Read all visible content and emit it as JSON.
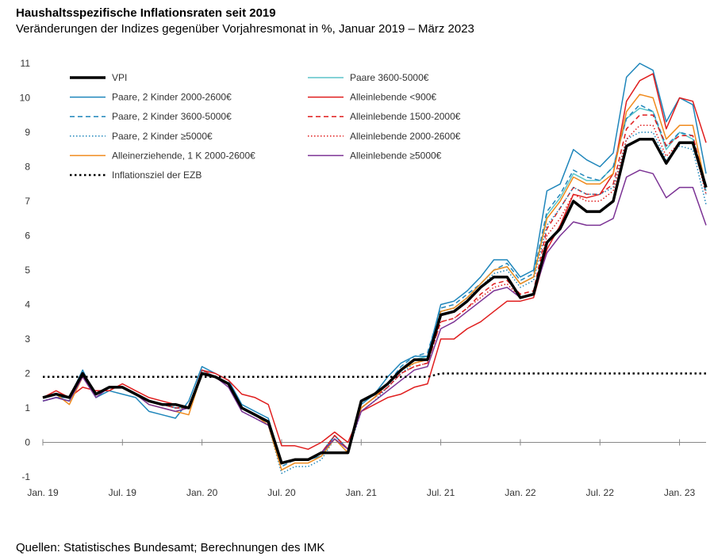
{
  "header": {
    "title": "Haushaltsspezifische Inflationsraten seit 2019",
    "subtitle": "Veränderungen der Indizes gegenüber Vorjahresmonat in %, Januar 2019 – März 2023"
  },
  "footer": {
    "source": "Quellen: Statistisches Bundesamt; Berechnungen des IMK"
  },
  "chart_data": {
    "type": "line",
    "title": "Haushaltsspezifische Inflationsraten seit 2019",
    "subtitle": "Veränderungen der Indizes gegenüber Vorjahresmonat in %, Januar 2019 – März 2023",
    "xlabel": "",
    "ylabel": "",
    "ylim": [
      -1,
      11
    ],
    "yticks": [
      -1,
      0,
      1,
      2,
      3,
      4,
      5,
      6,
      7,
      8,
      9,
      10,
      11
    ],
    "x_tick_labels": [
      {
        "month_index": 0,
        "label": "Jan. 19"
      },
      {
        "month_index": 6,
        "label": "Jul. 19"
      },
      {
        "month_index": 12,
        "label": "Jan. 20"
      },
      {
        "month_index": 18,
        "label": "Jul. 20"
      },
      {
        "month_index": 24,
        "label": "Jan. 21"
      },
      {
        "month_index": 30,
        "label": "Jul. 21"
      },
      {
        "month_index": 36,
        "label": "Jan. 22"
      },
      {
        "month_index": 42,
        "label": "Jul. 22"
      },
      {
        "month_index": 48,
        "label": "Jan. 23"
      }
    ],
    "x": [
      "2019-01",
      "2019-02",
      "2019-03",
      "2019-04",
      "2019-05",
      "2019-06",
      "2019-07",
      "2019-08",
      "2019-09",
      "2019-10",
      "2019-11",
      "2019-12",
      "2020-01",
      "2020-02",
      "2020-03",
      "2020-04",
      "2020-05",
      "2020-06",
      "2020-07",
      "2020-08",
      "2020-09",
      "2020-10",
      "2020-11",
      "2020-12",
      "2021-01",
      "2021-02",
      "2021-03",
      "2021-04",
      "2021-05",
      "2021-06",
      "2021-07",
      "2021-08",
      "2021-09",
      "2021-10",
      "2021-11",
      "2021-12",
      "2022-01",
      "2022-02",
      "2022-03",
      "2022-04",
      "2022-05",
      "2022-06",
      "2022-07",
      "2022-08",
      "2022-09",
      "2022-10",
      "2022-11",
      "2022-12",
      "2023-01",
      "2023-02",
      "2023-03"
    ],
    "grid": false,
    "legend_position": "top-left",
    "series": [
      {
        "name": "VPI",
        "color": "#000000",
        "dash": "solid",
        "width": 3.5,
        "values": [
          1.3,
          1.4,
          1.3,
          2.0,
          1.4,
          1.6,
          1.6,
          1.4,
          1.2,
          1.1,
          1.1,
          1.0,
          2.0,
          1.9,
          1.7,
          1.0,
          0.8,
          0.6,
          -0.6,
          -0.5,
          -0.5,
          -0.3,
          -0.3,
          -0.3,
          1.2,
          1.4,
          1.7,
          2.1,
          2.4,
          2.4,
          3.7,
          3.8,
          4.1,
          4.5,
          4.8,
          4.8,
          4.2,
          4.3,
          5.8,
          6.2,
          7.0,
          6.7,
          6.7,
          7.0,
          8.6,
          8.8,
          8.8,
          8.1,
          8.7,
          8.7,
          7.4
        ]
      },
      {
        "name": "Paare 3600-5000€",
        "color": "#5bc4c9",
        "dash": "solid",
        "width": 1.5,
        "values": [
          1.2,
          1.3,
          1.2,
          2.0,
          1.4,
          1.6,
          1.6,
          1.4,
          1.2,
          1.1,
          1.0,
          1.0,
          2.1,
          1.9,
          1.7,
          1.0,
          0.8,
          0.6,
          -0.6,
          -0.5,
          -0.5,
          -0.3,
          0.2,
          -0.2,
          1.0,
          1.3,
          1.7,
          2.1,
          2.4,
          2.5,
          3.8,
          3.9,
          4.2,
          4.6,
          5.0,
          5.1,
          4.6,
          4.8,
          6.6,
          7.1,
          7.8,
          7.6,
          7.6,
          8.0,
          9.4,
          9.7,
          9.6,
          8.5,
          9.0,
          8.8,
          7.3
        ]
      },
      {
        "name": "Paare, 2 Kinder 2000-2600€",
        "color": "#1f86bb",
        "dash": "solid",
        "width": 1.5,
        "values": [
          1.2,
          1.3,
          1.3,
          2.1,
          1.3,
          1.5,
          1.4,
          1.3,
          0.9,
          0.8,
          0.7,
          1.2,
          2.2,
          2.0,
          1.8,
          1.1,
          0.9,
          0.7,
          -0.6,
          -0.5,
          -0.5,
          -0.4,
          0.2,
          -0.2,
          1.1,
          1.4,
          1.9,
          2.3,
          2.5,
          2.5,
          4.0,
          4.1,
          4.4,
          4.8,
          5.3,
          5.3,
          4.8,
          5.0,
          7.3,
          7.5,
          8.5,
          8.2,
          8.0,
          8.4,
          10.6,
          11.0,
          10.8,
          9.3,
          10.0,
          9.8,
          7.8
        ]
      },
      {
        "name": "Alleinlebende <900€",
        "color": "#e01e1e",
        "dash": "solid",
        "width": 1.5,
        "values": [
          1.3,
          1.5,
          1.3,
          1.6,
          1.5,
          1.5,
          1.7,
          1.5,
          1.3,
          1.2,
          1.1,
          1.0,
          2.1,
          2.0,
          1.8,
          1.4,
          1.3,
          1.1,
          -0.1,
          -0.1,
          -0.2,
          0.0,
          0.3,
          0.0,
          0.9,
          1.1,
          1.3,
          1.4,
          1.6,
          1.7,
          3.0,
          3.0,
          3.3,
          3.5,
          3.8,
          4.1,
          4.1,
          4.2,
          5.6,
          6.3,
          7.2,
          7.1,
          7.2,
          7.8,
          9.9,
          10.5,
          10.7,
          9.1,
          10.0,
          9.9,
          8.7
        ]
      },
      {
        "name": "Paare, 2 Kinder 3600-5000€",
        "color": "#1f86bb",
        "dash": "dashed",
        "width": 1.5,
        "values": [
          1.2,
          1.3,
          1.2,
          2.0,
          1.4,
          1.6,
          1.6,
          1.4,
          1.2,
          1.1,
          1.0,
          1.0,
          2.1,
          1.9,
          1.7,
          1.0,
          0.8,
          0.6,
          -0.7,
          -0.5,
          -0.5,
          -0.3,
          0.2,
          -0.2,
          1.0,
          1.3,
          1.7,
          2.2,
          2.5,
          2.6,
          3.9,
          4.0,
          4.3,
          4.6,
          5.0,
          5.2,
          4.7,
          4.9,
          6.7,
          7.2,
          7.9,
          7.7,
          7.6,
          8.0,
          9.4,
          9.8,
          9.6,
          8.6,
          9.0,
          8.9,
          7.2
        ]
      },
      {
        "name": "Alleinlebende 1500-2000€",
        "color": "#e01e1e",
        "dash": "dashed",
        "width": 1.5,
        "values": [
          1.3,
          1.4,
          1.3,
          1.9,
          1.4,
          1.6,
          1.6,
          1.4,
          1.2,
          1.1,
          1.0,
          1.0,
          2.1,
          1.9,
          1.7,
          1.0,
          0.8,
          0.6,
          -0.6,
          -0.5,
          -0.5,
          -0.3,
          0.2,
          -0.2,
          1.0,
          1.3,
          1.6,
          2.0,
          2.2,
          2.3,
          3.5,
          3.6,
          3.9,
          4.3,
          4.6,
          4.7,
          4.3,
          4.4,
          6.2,
          6.8,
          7.4,
          7.2,
          7.2,
          7.5,
          9.1,
          9.5,
          9.5,
          8.6,
          8.9,
          8.9,
          7.4
        ]
      },
      {
        "name": "Paare, 2 Kinder ≥5000€",
        "color": "#1f86bb",
        "dash": "dotted",
        "width": 1.5,
        "values": [
          1.2,
          1.3,
          1.2,
          2.0,
          1.4,
          1.6,
          1.6,
          1.4,
          1.2,
          1.1,
          1.0,
          1.0,
          2.1,
          1.9,
          1.7,
          0.9,
          0.7,
          0.5,
          -0.9,
          -0.7,
          -0.7,
          -0.5,
          0.1,
          -0.3,
          0.9,
          1.2,
          1.6,
          2.0,
          2.3,
          2.4,
          3.8,
          3.9,
          4.2,
          4.5,
          4.9,
          5.0,
          4.5,
          4.7,
          6.3,
          6.8,
          7.4,
          7.2,
          7.2,
          7.4,
          8.8,
          9.0,
          9.0,
          8.2,
          8.6,
          8.5,
          6.9
        ]
      },
      {
        "name": "Alleinlebende 2000-2600€",
        "color": "#e01e1e",
        "dash": "dotted",
        "width": 1.5,
        "values": [
          1.3,
          1.4,
          1.3,
          1.9,
          1.4,
          1.6,
          1.6,
          1.4,
          1.2,
          1.1,
          1.0,
          1.0,
          2.1,
          1.9,
          1.7,
          1.0,
          0.8,
          0.6,
          -0.6,
          -0.5,
          -0.5,
          -0.3,
          0.2,
          -0.2,
          1.0,
          1.3,
          1.6,
          2.0,
          2.2,
          2.3,
          3.5,
          3.6,
          3.9,
          4.2,
          4.5,
          4.6,
          4.2,
          4.3,
          6.0,
          6.5,
          7.2,
          7.0,
          7.0,
          7.3,
          8.8,
          9.2,
          9.2,
          8.3,
          8.7,
          8.7,
          7.2
        ]
      },
      {
        "name": "Alleinerziehende, 1 K 2000-2600€",
        "color": "#f08a1c",
        "dash": "solid",
        "width": 1.5,
        "values": [
          1.3,
          1.4,
          1.1,
          1.9,
          1.4,
          1.6,
          1.6,
          1.4,
          1.1,
          1.0,
          0.9,
          0.8,
          2.0,
          1.9,
          1.7,
          1.0,
          0.8,
          0.5,
          -0.8,
          -0.6,
          -0.6,
          -0.4,
          0.1,
          -0.3,
          1.0,
          1.3,
          1.7,
          2.1,
          2.3,
          2.4,
          3.8,
          3.9,
          4.2,
          4.6,
          5.0,
          5.1,
          4.6,
          4.8,
          6.5,
          7.0,
          7.7,
          7.5,
          7.5,
          7.8,
          9.6,
          10.1,
          10.0,
          8.8,
          9.2,
          9.2,
          7.4
        ]
      },
      {
        "name": "Alleinlebende ≥5000€",
        "color": "#7b3294",
        "dash": "solid",
        "width": 1.5,
        "values": [
          1.2,
          1.3,
          1.2,
          1.9,
          1.3,
          1.6,
          1.6,
          1.4,
          1.1,
          1.0,
          0.9,
          1.0,
          2.0,
          1.9,
          1.6,
          0.9,
          0.7,
          0.5,
          -0.6,
          -0.5,
          -0.5,
          -0.3,
          0.1,
          -0.2,
          0.9,
          1.2,
          1.5,
          1.8,
          2.1,
          2.2,
          3.3,
          3.5,
          3.8,
          4.1,
          4.4,
          4.5,
          4.2,
          4.3,
          5.5,
          6.0,
          6.4,
          6.3,
          6.3,
          6.5,
          7.7,
          7.9,
          7.8,
          7.1,
          7.4,
          7.4,
          6.3
        ]
      },
      {
        "name": "Inflationsziel der EZB",
        "color": "#000000",
        "dash": "target",
        "width": 2.5,
        "values": [
          1.9,
          1.9,
          1.9,
          1.9,
          1.9,
          1.9,
          1.9,
          1.9,
          1.9,
          1.9,
          1.9,
          1.9,
          1.9,
          1.9,
          1.9,
          1.9,
          1.9,
          1.9,
          1.9,
          1.9,
          1.9,
          1.9,
          1.9,
          1.9,
          1.9,
          1.9,
          1.9,
          1.9,
          1.9,
          1.9,
          2.0,
          2.0,
          2.0,
          2.0,
          2.0,
          2.0,
          2.0,
          2.0,
          2.0,
          2.0,
          2.0,
          2.0,
          2.0,
          2.0,
          2.0,
          2.0,
          2.0,
          2.0,
          2.0,
          2.0,
          2.0
        ]
      }
    ],
    "legend_columns": [
      [
        "VPI",
        "Paare, 2 Kinder 2000-2600€",
        "Paare, 2 Kinder 3600-5000€",
        "Paare, 2 Kinder ≥5000€",
        "Alleinerziehende, 1 K 2000-2600€",
        "Inflationsziel der EZB"
      ],
      [
        "Paare 3600-5000€",
        "Alleinlebende <900€",
        "Alleinlebende 1500-2000€",
        "Alleinlebende 2000-2600€",
        "Alleinlebende ≥5000€"
      ]
    ]
  }
}
